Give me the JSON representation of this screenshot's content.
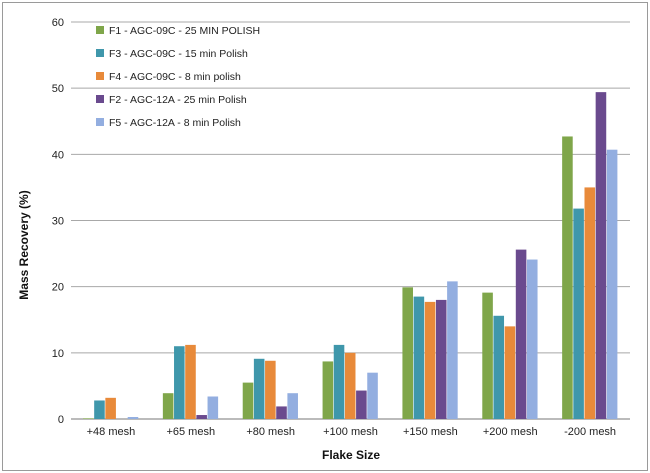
{
  "chart_data": {
    "type": "bar",
    "title": "",
    "xlabel": "Flake Size",
    "ylabel": "Mass Recovery (%)",
    "ylim": [
      0,
      60
    ],
    "yticks": [
      0,
      10,
      20,
      30,
      40,
      50,
      60
    ],
    "grid": "horizontal",
    "legend_position": "top-left",
    "categories": [
      "+48 mesh",
      "+65 mesh",
      "+80 mesh",
      "+100 mesh",
      "+150 mesh",
      "+200 mesh",
      "-200 mesh"
    ],
    "series": [
      {
        "name": "F1 - AGC-09C - 25 MIN POLISH",
        "color": "#7fa64a",
        "values": [
          0.1,
          3.9,
          5.5,
          8.7,
          19.9,
          19.1,
          42.7
        ]
      },
      {
        "name": "F3 - AGC-09C - 15 min Polish",
        "color": "#3f97ab",
        "values": [
          2.8,
          11.0,
          9.1,
          11.2,
          18.5,
          15.6,
          31.8
        ]
      },
      {
        "name": "F4 - AGC-09C - 8 min polish",
        "color": "#e88a3a",
        "values": [
          3.2,
          11.2,
          8.8,
          10.0,
          17.7,
          14.0,
          35.0
        ]
      },
      {
        "name": "F2 - AGC-12A - 25 min Polish",
        "color": "#6a4a8e",
        "values": [
          0.0,
          0.6,
          1.9,
          4.3,
          18.0,
          25.6,
          49.4
        ]
      },
      {
        "name": "F5 - AGC-12A - 8 min Polish",
        "color": "#93aee0",
        "values": [
          0.3,
          3.4,
          3.9,
          7.0,
          20.8,
          24.1,
          40.7
        ]
      }
    ]
  }
}
